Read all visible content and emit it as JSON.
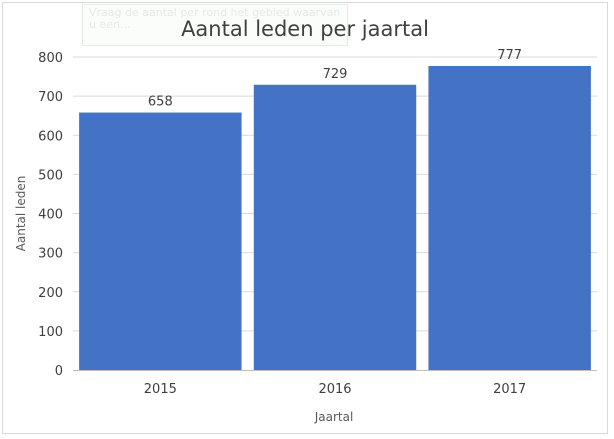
{
  "ghost_text": "Vraag de aantal per rond het gebied waarvan u een...",
  "chart_data": {
    "type": "bar",
    "title": "Aantal leden per jaartal",
    "xlabel": "Jaartal",
    "ylabel": "Aantal leden",
    "categories": [
      "2015",
      "2016",
      "2017"
    ],
    "values": [
      658,
      729,
      777
    ],
    "ylim": [
      0,
      800
    ],
    "yticks": [
      0,
      100,
      200,
      300,
      400,
      500,
      600,
      700,
      800
    ],
    "grid": true,
    "legend": "none",
    "bar_color": "#4472C4"
  }
}
